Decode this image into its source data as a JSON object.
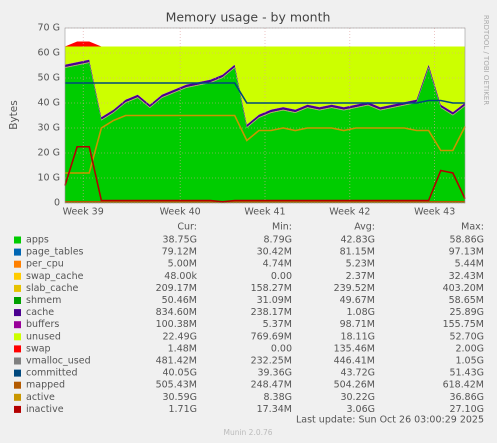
{
  "chart_data": {
    "type": "area",
    "title": "Memory usage - by month",
    "y_label": "Bytes",
    "side_text": "RRDTOOL / TOBI OETIKER",
    "footer": "Last update: Sun Oct 26 03:00:29 2025",
    "version": "Munin 2.0.76",
    "stats_headers": [
      "Cur:",
      "Min:",
      "Avg:",
      "Max:"
    ],
    "x": [
      0,
      1,
      2,
      3,
      4,
      5,
      6,
      7,
      8,
      9,
      10,
      11,
      12,
      13,
      14,
      15,
      16,
      17,
      18,
      19,
      20,
      21,
      22,
      23,
      24,
      25,
      26,
      27,
      28,
      29,
      30,
      31,
      32,
      33
    ],
    "xlim": [
      0,
      33
    ],
    "xticks": [
      {
        "value": 1.5,
        "label": "Week 39"
      },
      {
        "value": 9.5,
        "label": "Week 40"
      },
      {
        "value": 16.5,
        "label": "Week 41"
      },
      {
        "value": 23.5,
        "label": "Week 42"
      },
      {
        "value": 30.5,
        "label": "Week 43"
      }
    ],
    "ylim": [
      0,
      70
    ],
    "yticks": [
      0,
      {
        "value": 10,
        "label": "10 G"
      },
      {
        "value": 20,
        "label": "20 G"
      },
      {
        "value": 30,
        "label": "30 G"
      },
      {
        "value": 40,
        "label": "40 G"
      },
      {
        "value": 50,
        "label": "50 G"
      },
      {
        "value": 60,
        "label": "60 G"
      },
      {
        "value": 70,
        "label": "70 G"
      }
    ],
    "grid": true,
    "series": [
      {
        "name": "apps",
        "color": "#00cc00",
        "stack": true,
        "stats": [
          "38.75G",
          "8.79G",
          "42.83G",
          "58.86G"
        ],
        "values": [
          54,
          55,
          56,
          33,
          36,
          40,
          42,
          38,
          42,
          44,
          46,
          47,
          48,
          50,
          54,
          30,
          34,
          36,
          37,
          36,
          38,
          37,
          38,
          37,
          38,
          39,
          37,
          38,
          39,
          40,
          54,
          38,
          35,
          38.7
        ]
      },
      {
        "name": "page_tables",
        "color": "#0066b3",
        "stack": true,
        "stats": [
          "79.12M",
          "30.42M",
          "81.15M",
          "97.13M"
        ],
        "values": [
          0.08,
          0.08,
          0.08,
          0.08,
          0.08,
          0.08,
          0.08,
          0.08,
          0.08,
          0.08,
          0.08,
          0.08,
          0.08,
          0.08,
          0.08,
          0.08,
          0.08,
          0.08,
          0.08,
          0.08,
          0.08,
          0.08,
          0.08,
          0.08,
          0.08,
          0.08,
          0.08,
          0.08,
          0.08,
          0.08,
          0.08,
          0.08,
          0.08,
          0.08
        ]
      },
      {
        "name": "per_cpu",
        "color": "#ff8000",
        "stack": true,
        "stats": [
          "5.00M",
          "4.74M",
          "5.23M",
          "5.44M"
        ],
        "values": [
          0.005,
          0.005,
          0.005,
          0.005,
          0.005,
          0.005,
          0.005,
          0.005,
          0.005,
          0.005,
          0.005,
          0.005,
          0.005,
          0.005,
          0.005,
          0.005,
          0.005,
          0.005,
          0.005,
          0.005,
          0.005,
          0.005,
          0.005,
          0.005,
          0.005,
          0.005,
          0.005,
          0.005,
          0.005,
          0.005,
          0.005,
          0.005,
          0.005,
          0.005
        ]
      },
      {
        "name": "swap_cache",
        "color": "#ffcc00",
        "stack": true,
        "stats": [
          "48.00k",
          "0.00",
          "2.37M",
          "32.43M"
        ],
        "values": [
          0,
          0,
          0,
          0,
          0,
          0,
          0,
          0,
          0,
          0,
          0,
          0,
          0,
          0,
          0,
          0,
          0,
          0,
          0,
          0,
          0,
          0,
          0,
          0,
          0,
          0,
          0,
          0,
          0,
          0,
          0,
          0,
          0,
          0
        ]
      },
      {
        "name": "slab_cache",
        "color": "#e6c200",
        "stack": true,
        "stats": [
          "209.17M",
          "158.27M",
          "239.52M",
          "403.20M"
        ],
        "values": [
          0.21,
          0.21,
          0.21,
          0.21,
          0.21,
          0.21,
          0.21,
          0.21,
          0.21,
          0.21,
          0.21,
          0.21,
          0.21,
          0.21,
          0.21,
          0.21,
          0.21,
          0.21,
          0.21,
          0.21,
          0.21,
          0.21,
          0.21,
          0.21,
          0.21,
          0.21,
          0.21,
          0.21,
          0.21,
          0.21,
          0.21,
          0.21,
          0.21,
          0.21
        ]
      },
      {
        "name": "shmem",
        "color": "#00a000",
        "stack": true,
        "stats": [
          "50.46M",
          "31.09M",
          "49.67M",
          "58.65M"
        ],
        "values": [
          0.05,
          0.05,
          0.05,
          0.05,
          0.05,
          0.05,
          0.05,
          0.05,
          0.05,
          0.05,
          0.05,
          0.05,
          0.05,
          0.05,
          0.05,
          0.05,
          0.05,
          0.05,
          0.05,
          0.05,
          0.05,
          0.05,
          0.05,
          0.05,
          0.05,
          0.05,
          0.05,
          0.05,
          0.05,
          0.05,
          0.05,
          0.05,
          0.05,
          0.05
        ]
      },
      {
        "name": "cache",
        "color": "#4b0090",
        "stack": true,
        "stats": [
          "834.60M",
          "238.17M",
          "1.08G",
          "25.89G"
        ],
        "values": [
          0.95,
          0.95,
          0.95,
          0.95,
          0.95,
          0.95,
          0.95,
          0.95,
          0.95,
          0.95,
          0.95,
          0.95,
          0.95,
          0.95,
          0.95,
          0.95,
          0.95,
          0.95,
          0.95,
          0.95,
          0.95,
          0.95,
          0.95,
          0.95,
          0.95,
          0.95,
          0.95,
          0.95,
          0.95,
          0.95,
          0.95,
          0.95,
          0.95,
          0.95
        ]
      },
      {
        "name": "buffers",
        "color": "#990099",
        "stack": true,
        "stats": [
          "100.38M",
          "5.37M",
          "98.71M",
          "155.75M"
        ],
        "values": [
          0.1,
          0.1,
          0.1,
          0.1,
          0.1,
          0.1,
          0.1,
          0.1,
          0.1,
          0.1,
          0.1,
          0.1,
          0.1,
          0.1,
          0.1,
          0.1,
          0.1,
          0.1,
          0.1,
          0.1,
          0.1,
          0.1,
          0.1,
          0.1,
          0.1,
          0.1,
          0.1,
          0.1,
          0.1,
          0.1,
          0.1,
          0.1,
          0.1,
          0.1
        ]
      },
      {
        "name": "unused",
        "color": "#ccff00",
        "stack": true,
        "stats": [
          "22.49G",
          "769.69M",
          "18.11G",
          "52.70G"
        ],
        "values": [
          7.2,
          6.2,
          5.2,
          28.2,
          25.2,
          21.2,
          19.2,
          23.2,
          19.2,
          17.2,
          15.2,
          14.2,
          13.2,
          11.2,
          7.2,
          31.2,
          27.2,
          25.2,
          24.2,
          25.2,
          23.2,
          24.2,
          23.2,
          24.2,
          23.2,
          22.2,
          24.2,
          23.2,
          22.2,
          21.2,
          7.2,
          23.2,
          26.2,
          22.5
        ]
      },
      {
        "name": "swap",
        "color": "#ff0000",
        "stack": true,
        "stats": [
          "1.48M",
          "0.00",
          "135.46M",
          "2.00G"
        ],
        "values": [
          0,
          2,
          2,
          0,
          0,
          0,
          0,
          0,
          0,
          0,
          0,
          0,
          0,
          0,
          0,
          0,
          0,
          0,
          0,
          0,
          0,
          0,
          0,
          0,
          0,
          0,
          0,
          0,
          0,
          0,
          0,
          0,
          0,
          0
        ]
      },
      {
        "name": "vmalloc_used",
        "color": "#808080",
        "stack": false,
        "stats": [
          "481.42M",
          "232.25M",
          "446.41M",
          "1.05G"
        ],
        "values": [
          0.45,
          0.45,
          0.45,
          0.45,
          0.45,
          0.45,
          0.45,
          0.45,
          0.45,
          0.45,
          0.45,
          0.45,
          0.45,
          0.45,
          0.45,
          0.45,
          0.45,
          0.45,
          0.45,
          0.45,
          0.45,
          0.45,
          0.45,
          0.45,
          0.45,
          0.45,
          0.45,
          0.45,
          0.45,
          0.45,
          0.45,
          0.45,
          0.45,
          0.45
        ]
      },
      {
        "name": "committed",
        "color": "#00487d",
        "stack": false,
        "stats": [
          "40.05G",
          "39.36G",
          "43.72G",
          "51.43G"
        ],
        "values": [
          48,
          48,
          48,
          48,
          48,
          48,
          48,
          48,
          48,
          48,
          48,
          48,
          48,
          48,
          48,
          40,
          40,
          40,
          40,
          40,
          40,
          40,
          40,
          40,
          40,
          40,
          40,
          40,
          40,
          40,
          41,
          41,
          40,
          40
        ]
      },
      {
        "name": "mapped",
        "color": "#b35a00",
        "stack": false,
        "stats": [
          "505.43M",
          "248.47M",
          "504.26M",
          "618.42M"
        ],
        "values": [
          0.5,
          0.5,
          0.5,
          0.5,
          0.5,
          0.5,
          0.5,
          0.5,
          0.5,
          0.5,
          0.5,
          0.5,
          0.5,
          0.5,
          0.5,
          0.5,
          0.5,
          0.5,
          0.5,
          0.5,
          0.5,
          0.5,
          0.5,
          0.5,
          0.5,
          0.5,
          0.5,
          0.5,
          0.5,
          0.5,
          0.5,
          0.5,
          0.5,
          0.5
        ]
      },
      {
        "name": "active",
        "color": "#c89600",
        "stack": false,
        "stats": [
          "30.59G",
          "8.38G",
          "30.22G",
          "36.86G"
        ],
        "values": [
          12,
          12,
          12,
          30,
          33,
          35,
          35,
          35,
          35,
          35,
          35,
          35,
          35,
          35,
          35,
          25,
          29,
          29,
          30,
          29,
          30,
          30,
          30,
          29,
          30,
          30,
          30,
          30,
          30,
          29,
          29,
          21,
          21,
          30.6
        ]
      },
      {
        "name": "inactive",
        "color": "#b30000",
        "stack": false,
        "stats": [
          "1.71G",
          "17.34M",
          "3.06G",
          "27.10G"
        ],
        "values": [
          7,
          22.5,
          22.5,
          1,
          1,
          1,
          1,
          1,
          1,
          1,
          1,
          1,
          1,
          0.5,
          1,
          1,
          1,
          1,
          1,
          1,
          1,
          1,
          1,
          1,
          1,
          1,
          1,
          1,
          1,
          1,
          1,
          13,
          12,
          1.7
        ]
      }
    ]
  }
}
